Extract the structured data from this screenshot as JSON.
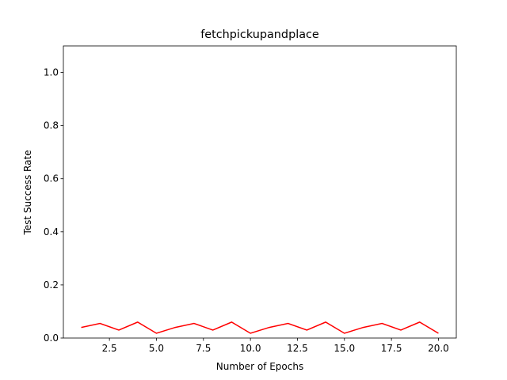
{
  "chart_data": {
    "type": "line",
    "title": "fetchpickupandplace",
    "x_label": "Number of Epochs",
    "y_label": "Test Success Rate",
    "x": [
      1,
      2,
      3,
      4,
      5,
      6,
      7,
      8,
      9,
      10,
      11,
      12,
      13,
      14,
      15,
      16,
      17,
      18,
      19,
      20
    ],
    "series": [
      {
        "name": "test success rate",
        "color": "#ff0000",
        "values": [
          0.04,
          0.055,
          0.03,
          0.06,
          0.018,
          0.04,
          0.055,
          0.03,
          0.06,
          0.018,
          0.04,
          0.055,
          0.03,
          0.06,
          0.018,
          0.04,
          0.055,
          0.03,
          0.06,
          0.018
        ]
      }
    ],
    "xlim": [
      0.05,
      20.95
    ],
    "xticks": [
      2.5,
      {
        "value": 5,
        "label": "5.0"
      },
      7.5,
      {
        "value": 10,
        "label": "10.0"
      },
      12.5,
      {
        "value": 15,
        "label": "15.0"
      },
      17.5,
      {
        "value": 20,
        "label": "20.0"
      }
    ],
    "ylim": [
      0,
      1.1
    ],
    "yticks": [
      {
        "value": 0,
        "label": "0.0"
      },
      0.2,
      0.4,
      0.6,
      0.8,
      {
        "value": 1,
        "label": "1.0"
      }
    ],
    "grid": false
  }
}
